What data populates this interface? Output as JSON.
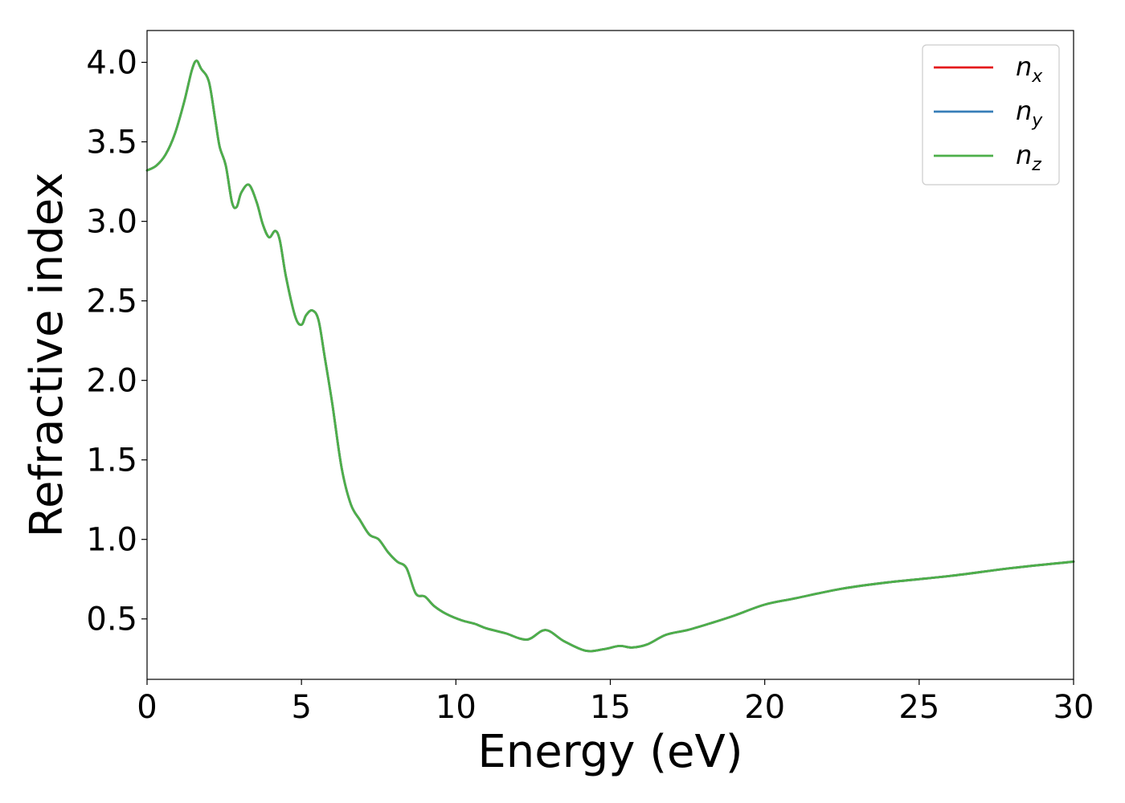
{
  "chart_data": {
    "type": "line",
    "title": "",
    "xlabel": "Energy (eV)",
    "ylabel": "Refractive index",
    "xlim": [
      0,
      30
    ],
    "ylim": [
      0.12,
      4.2
    ],
    "xticks": [
      0,
      5,
      10,
      15,
      20,
      25,
      30
    ],
    "yticks": [
      0.5,
      1.0,
      1.5,
      2.0,
      2.5,
      3.0,
      3.5,
      4.0
    ],
    "xtick_labels": [
      "0",
      "5",
      "10",
      "15",
      "20",
      "25",
      "30"
    ],
    "ytick_labels": [
      "0.5",
      "1.0",
      "1.5",
      "2.0",
      "2.5",
      "3.0",
      "3.5",
      "4.0"
    ],
    "grid": false,
    "legend_position": "top-right",
    "legend": [
      {
        "base": "n",
        "sub": "x",
        "color": "#e41a1c"
      },
      {
        "base": "n",
        "sub": "y",
        "color": "#377eb8"
      },
      {
        "base": "n",
        "sub": "z",
        "color": "#4daf4a"
      }
    ],
    "x": [
      0,
      0.3,
      0.6,
      0.9,
      1.2,
      1.45,
      1.6,
      1.75,
      2.0,
      2.2,
      2.35,
      2.55,
      2.75,
      2.9,
      3.05,
      3.3,
      3.55,
      3.75,
      3.95,
      4.15,
      4.3,
      4.5,
      4.8,
      5.0,
      5.15,
      5.35,
      5.55,
      5.75,
      6.0,
      6.3,
      6.6,
      6.9,
      7.2,
      7.5,
      7.8,
      8.1,
      8.4,
      8.7,
      9.0,
      9.3,
      9.7,
      10.2,
      10.6,
      11.0,
      11.6,
      12.3,
      12.9,
      13.5,
      14.2,
      14.8,
      15.3,
      15.7,
      16.2,
      16.8,
      17.5,
      18.2,
      19.0,
      20.0,
      21.0,
      22.5,
      24.0,
      26.0,
      28.0,
      30.0
    ],
    "series": [
      {
        "name": "n_x",
        "values": [
          3.32,
          3.35,
          3.42,
          3.55,
          3.75,
          3.95,
          4.01,
          3.96,
          3.88,
          3.65,
          3.47,
          3.35,
          3.12,
          3.09,
          3.18,
          3.23,
          3.12,
          2.98,
          2.9,
          2.94,
          2.88,
          2.65,
          2.4,
          2.35,
          2.41,
          2.44,
          2.38,
          2.15,
          1.85,
          1.45,
          1.22,
          1.12,
          1.03,
          1.0,
          0.92,
          0.86,
          0.82,
          0.66,
          0.64,
          0.58,
          0.53,
          0.49,
          0.47,
          0.44,
          0.41,
          0.37,
          0.43,
          0.36,
          0.3,
          0.31,
          0.33,
          0.32,
          0.34,
          0.4,
          0.43,
          0.47,
          0.52,
          0.59,
          0.63,
          0.69,
          0.73,
          0.77,
          0.82,
          0.86
        ]
      },
      {
        "name": "n_y",
        "values": [
          3.32,
          3.35,
          3.42,
          3.55,
          3.75,
          3.95,
          4.01,
          3.96,
          3.88,
          3.65,
          3.47,
          3.35,
          3.12,
          3.09,
          3.18,
          3.23,
          3.12,
          2.98,
          2.9,
          2.94,
          2.88,
          2.65,
          2.4,
          2.35,
          2.41,
          2.44,
          2.38,
          2.15,
          1.85,
          1.45,
          1.22,
          1.12,
          1.03,
          1.0,
          0.92,
          0.86,
          0.82,
          0.66,
          0.64,
          0.58,
          0.53,
          0.49,
          0.47,
          0.44,
          0.41,
          0.37,
          0.43,
          0.36,
          0.3,
          0.31,
          0.33,
          0.32,
          0.34,
          0.4,
          0.43,
          0.47,
          0.52,
          0.59,
          0.63,
          0.69,
          0.73,
          0.77,
          0.82,
          0.86
        ]
      },
      {
        "name": "n_z",
        "values": [
          3.32,
          3.35,
          3.42,
          3.55,
          3.75,
          3.95,
          4.01,
          3.96,
          3.88,
          3.65,
          3.47,
          3.35,
          3.12,
          3.09,
          3.18,
          3.23,
          3.12,
          2.98,
          2.9,
          2.94,
          2.88,
          2.65,
          2.4,
          2.35,
          2.41,
          2.44,
          2.38,
          2.15,
          1.85,
          1.45,
          1.22,
          1.12,
          1.03,
          1.0,
          0.92,
          0.86,
          0.82,
          0.66,
          0.64,
          0.58,
          0.53,
          0.49,
          0.47,
          0.44,
          0.41,
          0.37,
          0.43,
          0.36,
          0.3,
          0.31,
          0.33,
          0.32,
          0.34,
          0.4,
          0.43,
          0.47,
          0.52,
          0.59,
          0.63,
          0.69,
          0.73,
          0.77,
          0.82,
          0.86
        ]
      }
    ]
  }
}
